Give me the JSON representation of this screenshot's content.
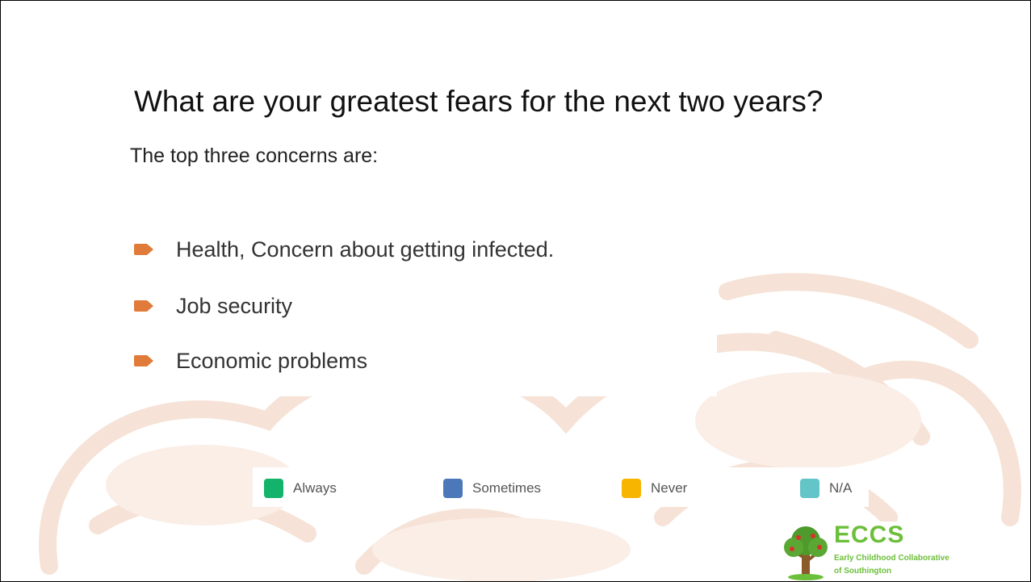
{
  "title": "What are your greatest fears for the next two years?",
  "subtitle": "The top three concerns are:",
  "bullets": [
    "Health,  Concern about getting infected.",
    "Job security",
    "Economic problems"
  ],
  "legend": [
    {
      "label": "Always",
      "color": "#14b36b"
    },
    {
      "label": "Sometimes",
      "color": "#4a78b8"
    },
    {
      "label": "Never",
      "color": "#f7b500"
    },
    {
      "label": "N/A",
      "color": "#63c5c8"
    }
  ],
  "logo": {
    "name": "ECCS",
    "tagline": [
      "Early Childhood Collaborative",
      "of Southington"
    ]
  }
}
